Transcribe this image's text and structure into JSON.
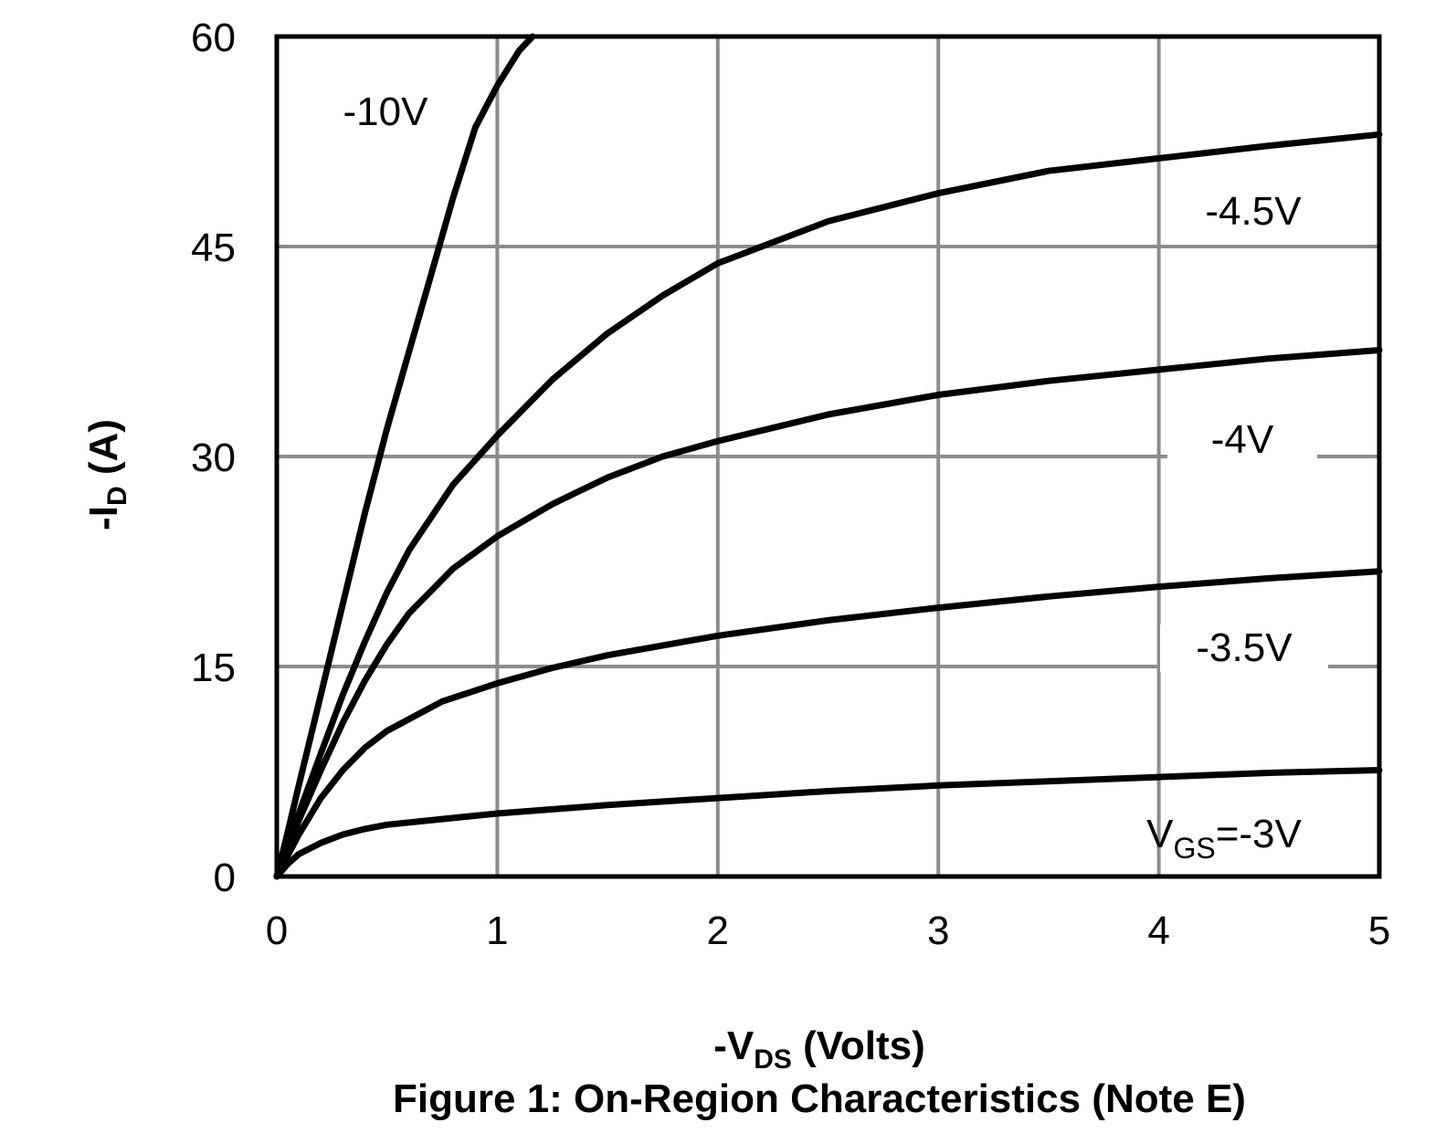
{
  "chart_data": {
    "type": "line",
    "title": "Figure 1: On-Region Characteristics (Note E)",
    "xlabel": "-V",
    "xlabel_sub": "DS",
    "xlabel_suffix": " (Volts)",
    "ylabel": "-I",
    "ylabel_sub": "D",
    "ylabel_suffix": " (A)",
    "xlim": [
      0,
      5
    ],
    "ylim": [
      0,
      60
    ],
    "xticks": [
      0,
      1,
      2,
      3,
      4,
      5
    ],
    "yticks": [
      0,
      15,
      30,
      45,
      60
    ],
    "grid": true,
    "colors": {
      "curve": "#000000",
      "grid": "#8c8c8c",
      "frame": "#000000"
    },
    "series": [
      {
        "name": "-10V",
        "x": [
          0,
          0.05,
          0.1,
          0.2,
          0.3,
          0.4,
          0.5,
          0.6,
          0.7,
          0.8,
          0.9,
          1.0,
          1.1,
          1.16
        ],
        "y": [
          0,
          3.2,
          6.5,
          13.0,
          19.5,
          26.0,
          32.0,
          37.5,
          43.0,
          48.5,
          53.5,
          56.5,
          59.0,
          60.0
        ]
      },
      {
        "name": "-4.5V",
        "x": [
          0,
          0.1,
          0.2,
          0.3,
          0.4,
          0.5,
          0.6,
          0.8,
          1.0,
          1.25,
          1.5,
          1.75,
          2.0,
          2.5,
          3.0,
          3.5,
          4.0,
          4.5,
          5.0
        ],
        "y": [
          0,
          4.5,
          8.8,
          13.0,
          16.8,
          20.3,
          23.3,
          28.0,
          31.5,
          35.5,
          38.8,
          41.5,
          43.8,
          46.8,
          48.8,
          50.4,
          51.3,
          52.2,
          53.0
        ]
      },
      {
        "name": "-4V",
        "x": [
          0,
          0.1,
          0.2,
          0.3,
          0.4,
          0.5,
          0.6,
          0.8,
          1.0,
          1.25,
          1.5,
          1.75,
          2.0,
          2.5,
          3.0,
          3.5,
          4.0,
          4.5,
          5.0
        ],
        "y": [
          0,
          4.0,
          7.6,
          11.0,
          14.0,
          16.6,
          18.8,
          22.0,
          24.3,
          26.6,
          28.5,
          30.0,
          31.1,
          33.0,
          34.4,
          35.4,
          36.2,
          37.0,
          37.6
        ]
      },
      {
        "name": "-3.5V",
        "x": [
          0,
          0.1,
          0.2,
          0.3,
          0.4,
          0.5,
          0.75,
          1.0,
          1.25,
          1.5,
          2.0,
          2.5,
          3.0,
          3.5,
          4.0,
          4.5,
          5.0
        ],
        "y": [
          0,
          3.0,
          5.6,
          7.6,
          9.2,
          10.4,
          12.5,
          13.8,
          14.9,
          15.8,
          17.2,
          18.3,
          19.2,
          20.0,
          20.7,
          21.3,
          21.8
        ]
      },
      {
        "name": "V",
        "name_sub": "GS",
        "name_suffix": "=-3V",
        "x": [
          0,
          0.05,
          0.1,
          0.2,
          0.3,
          0.4,
          0.5,
          0.75,
          1.0,
          1.5,
          2.0,
          2.5,
          3.0,
          3.5,
          4.0,
          4.5,
          5.0
        ],
        "y": [
          0,
          0.9,
          1.6,
          2.4,
          3.0,
          3.4,
          3.7,
          4.1,
          4.5,
          5.1,
          5.6,
          6.1,
          6.5,
          6.8,
          7.1,
          7.4,
          7.6
        ]
      }
    ]
  }
}
